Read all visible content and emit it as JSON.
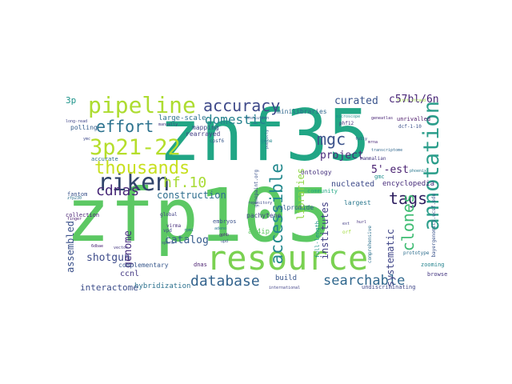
{
  "words": [
    {
      "text": "znf35",
      "color": "#21a685"
    },
    {
      "text": "zfp105",
      "color": "#5cc863"
    },
    {
      "text": "resource",
      "color": "#7ad151"
    },
    {
      "text": "pipeline",
      "color": "#addc30"
    },
    {
      "text": "riken",
      "color": "#31446b"
    },
    {
      "text": "3p21-22",
      "color": "#b5de2b"
    },
    {
      "text": "annotation",
      "color": "#2a9d8a"
    },
    {
      "text": "thousands",
      "color": "#c8e020"
    },
    {
      "text": "accuracy",
      "color": "#3e4989"
    },
    {
      "text": "cdnas",
      "color": "#482878"
    },
    {
      "text": "effort",
      "color": "#2c728e"
    },
    {
      "text": "accessible",
      "color": "#23898e"
    },
    {
      "text": "mgc",
      "color": "#3b528b"
    },
    {
      "text": "hf.10",
      "color": "#a8db34"
    },
    {
      "text": "database",
      "color": "#33638d"
    },
    {
      "text": "searchable",
      "color": "#31688e"
    },
    {
      "text": "tags",
      "color": "#2d1e5f"
    },
    {
      "text": "clones",
      "color": "#3fbc73"
    },
    {
      "text": "domestic",
      "color": "#26828e"
    },
    {
      "text": "curated",
      "color": "#3a548c"
    },
    {
      "text": "c57bl/6n",
      "color": "#482576"
    },
    {
      "text": "project",
      "color": "#4a2a7a"
    },
    {
      "text": "5'-est",
      "color": "#481f70"
    },
    {
      "text": "construction",
      "color": "#2e6e8e"
    },
    {
      "text": "catalog",
      "color": "#365c8d"
    },
    {
      "text": "shotgun",
      "color": "#3e4c8a"
    },
    {
      "text": "genome",
      "color": "#452d7d"
    },
    {
      "text": "assembled",
      "color": "#3b518b"
    },
    {
      "text": "interactome",
      "color": "#3d4e8a"
    },
    {
      "text": "libraries",
      "color": "#8fd744"
    },
    {
      "text": "institutes",
      "color": "#424086"
    },
    {
      "text": "systematic",
      "color": "#404688"
    },
    {
      "text": "encyclopedia",
      "color": "#472c7a"
    },
    {
      "text": "nucleated",
      "color": "#3e4a89"
    },
    {
      "text": "large-scale",
      "color": "#2c738e"
    },
    {
      "text": "3p",
      "color": "#1f958b"
    },
    {
      "text": "ccnl",
      "color": "#443983"
    },
    {
      "text": "build",
      "color": "#39568c"
    },
    {
      "text": "hybridization",
      "color": "#2c718e"
    },
    {
      "text": "minilibraries",
      "color": "#31688e"
    },
    {
      "text": "ontology",
      "color": "#46327e"
    },
    {
      "text": "mapping",
      "color": "#3f4788"
    },
    {
      "text": "ar4ip",
      "color": "#5ec962"
    },
    {
      "text": "complementary",
      "color": "#38588c"
    },
    {
      "text": "largest",
      "color": "#2a788e"
    },
    {
      "text": "browse",
      "color": "#453781"
    },
    {
      "text": "rearrayed",
      "color": "#433e85"
    },
    {
      "text": "dnas",
      "color": "#481c6e"
    },
    {
      "text": "gmc",
      "color": "#218f8d"
    },
    {
      "text": "zooming",
      "color": "#25838e"
    },
    {
      "text": "pachytene",
      "color": "#414487"
    },
    {
      "text": "valpromide",
      "color": "#365d8d"
    },
    {
      "text": "embryos",
      "color": "#3b528b"
    },
    {
      "text": "community",
      "color": "#22a884"
    },
    {
      "text": "collection",
      "color": "#482374"
    },
    {
      "text": "fantom",
      "color": "#3b528b"
    },
    {
      "text": "full-length",
      "color": "#20928c"
    },
    {
      "text": "accurate",
      "color": "#2e6f8e"
    },
    {
      "text": "unrivalled",
      "color": "#471365"
    },
    {
      "text": "undiscriminating",
      "color": "#3f4788"
    },
    {
      "text": "international",
      "color": "#414287"
    },
    {
      "text": "virma",
      "color": "#472d7b"
    },
    {
      "text": "vpd",
      "color": "#3e4a89"
    },
    {
      "text": "global",
      "color": "#424086"
    },
    {
      "text": "gene",
      "color": "#23888e"
    },
    {
      "text": "mammalian",
      "color": "#453882"
    },
    {
      "text": "cpsf6",
      "color": "#38598c"
    },
    {
      "text": "polling",
      "color": "#355f8d"
    },
    {
      "text": "comprehensive",
      "color": "#2d708e"
    },
    {
      "text": "bayergenomics.ucsf.edu",
      "color": "#3a538b"
    },
    {
      "text": "prototype",
      "color": "#2e6e8e"
    },
    {
      "text": "dcf-1-10",
      "color": "#3b518b"
    },
    {
      "text": "phf12",
      "color": "#46327e"
    },
    {
      "text": "first-strand",
      "color": "#9bd93c"
    },
    {
      "text": "mrna",
      "color": "#482677"
    },
    {
      "text": "genepaint.org",
      "color": "#3b528b"
    },
    {
      "text": "repository",
      "color": "#3e4c8a"
    },
    {
      "text": "publicly",
      "color": "#355e8d"
    },
    {
      "text": "transcriptome",
      "color": "#31678e"
    },
    {
      "text": "microscope",
      "color": "#21918c"
    },
    {
      "text": "geneatlas",
      "color": "#482475"
    },
    {
      "text": "finger",
      "color": "#481a6c"
    },
    {
      "text": "vector",
      "color": "#453781"
    },
    {
      "text": "adeno",
      "color": "#2a778e"
    },
    {
      "text": "manually",
      "color": "#443a83"
    },
    {
      "text": "ymc",
      "color": "#3e4989"
    },
    {
      "text": "long-read",
      "color": "#404588"
    },
    {
      "text": "zfp230",
      "color": "#2d708e"
    },
    {
      "text": "hurl",
      "color": "#46327e"
    },
    {
      "text": "sperm",
      "color": "#3b528b"
    },
    {
      "text": "6dbae",
      "color": "#482173"
    },
    {
      "text": "resolution",
      "color": "#38588c"
    },
    {
      "text": "orf",
      "color": "#a0da39"
    },
    {
      "text": "fully",
      "color": "#3f4889"
    },
    {
      "text": "gphb",
      "color": "#482878"
    },
    {
      "text": "rpmi",
      "color": "#2e6e8e"
    },
    {
      "text": "upd",
      "color": "#3a548c"
    },
    {
      "text": "ext",
      "color": "#433e85"
    },
    {
      "text": "phoenix",
      "color": "#2a788e"
    }
  ]
}
